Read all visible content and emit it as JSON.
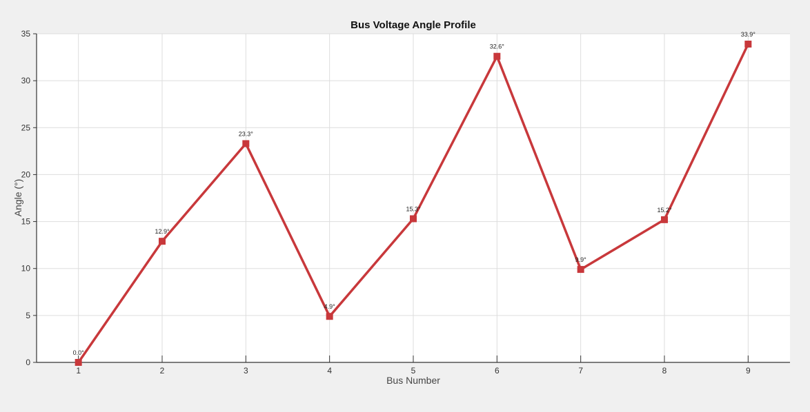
{
  "chart_data": {
    "type": "line",
    "title": "Bus Voltage Angle Profile",
    "xlabel": "Bus Number",
    "ylabel": "Angle (°)",
    "x": [
      1,
      2,
      3,
      4,
      5,
      6,
      7,
      8,
      9
    ],
    "y_ticks": [
      0,
      5,
      10,
      15,
      20,
      25,
      30,
      35
    ],
    "ylim": [
      0,
      35
    ],
    "xlim": [
      0.5,
      9.5
    ],
    "grid": true,
    "series": [
      {
        "color": "#c8383b",
        "marker": "square",
        "values": [
          0.0,
          12.9,
          23.3,
          4.9,
          15.3,
          32.6,
          9.9,
          15.2,
          33.9
        ],
        "labels": [
          "0.0°",
          "12.9°",
          "23.3°",
          "4.9°",
          "15.3°",
          "32.6°",
          "9.9°",
          "15.2°",
          "33.9°"
        ]
      }
    ]
  }
}
